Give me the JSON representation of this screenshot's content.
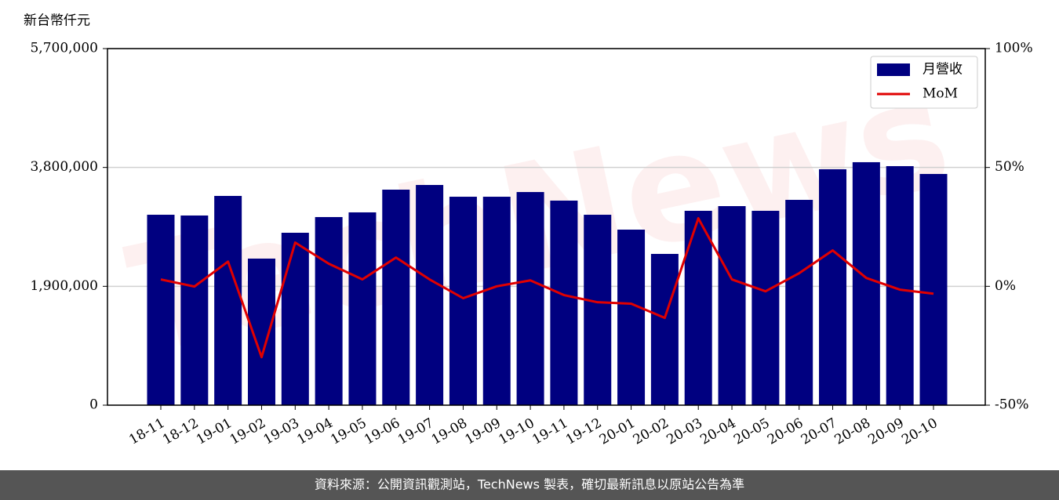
{
  "chart_data": {
    "type": "bar-line",
    "y_unit_label": "新台幣仟元",
    "watermark": "TechNews",
    "source": "資料來源：公開資訊觀測站，TechNews 製表，確切最新訊息以原站公告為準",
    "categories": [
      "18-11",
      "18-12",
      "19-01",
      "19-02",
      "19-03",
      "19-04",
      "19-05",
      "19-06",
      "19-07",
      "19-08",
      "19-09",
      "19-10",
      "19-11",
      "19-12",
      "20-01",
      "20-02",
      "20-03",
      "20-04",
      "20-05",
      "20-06",
      "20-07",
      "20-08",
      "20-09",
      "20-10"
    ],
    "series": [
      {
        "name": "月營收",
        "color": "#000080",
        "type": "bar",
        "values": [
          3044000,
          3032000,
          3345000,
          2343000,
          2756000,
          3007000,
          3082000,
          3445000,
          3520000,
          3332000,
          3332000,
          3407000,
          3270000,
          3044000,
          2806000,
          2418000,
          3107000,
          3182000,
          3107000,
          3282000,
          3771000,
          3884000,
          3821000,
          3696000
        ]
      },
      {
        "name": "MoM",
        "color": "#e00000",
        "type": "line",
        "axis": "y2",
        "values": [
          2.9,
          -0.1,
          10.4,
          -29.8,
          18.4,
          9.5,
          2.9,
          12.1,
          2.9,
          -5.0,
          0,
          2.5,
          -3.7,
          -6.7,
          -7.3,
          -13.3,
          28.6,
          2.9,
          -2.1,
          5.5,
          15.1,
          3.5,
          -1.4,
          -3.1
        ]
      }
    ],
    "ylim": [
      0,
      5700000
    ],
    "yticks": [
      {
        "value": 0,
        "label": "0"
      },
      {
        "value": 1900000,
        "label": "1,900,000"
      },
      {
        "value": 3800000,
        "label": "3,800,000"
      },
      {
        "value": 5700000,
        "label": "5,700,000"
      }
    ],
    "y2lim": [
      -50,
      100
    ],
    "y2ticks": [
      {
        "value": -50,
        "label": "-50%"
      },
      {
        "value": 0,
        "label": "0%"
      },
      {
        "value": 50,
        "label": "50%"
      },
      {
        "value": 100,
        "label": "100%"
      }
    ],
    "grid": true,
    "legend": "upper right"
  }
}
